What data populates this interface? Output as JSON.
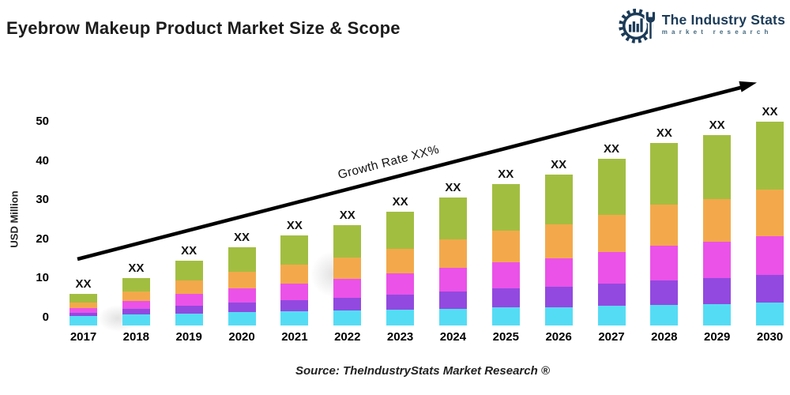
{
  "header": {
    "title": "Eyebrow Makeup Product Market Size & Scope",
    "logo": {
      "name": "The Industry Stats",
      "tagline": "market research",
      "color": "#1b3b58"
    }
  },
  "footer": {
    "source": "Source: TheIndustryStats Market Research ®"
  },
  "chart_data": {
    "type": "bar",
    "stacked": true,
    "title": "Eyebrow Makeup Product Market Size & Scope",
    "ylabel": "USD Million",
    "xlabel": "",
    "ylim": [
      0,
      50
    ],
    "yticks": [
      0,
      10,
      20,
      30,
      40,
      50
    ],
    "grid": false,
    "legend": "none",
    "value_label": "XX",
    "annotation": {
      "type": "trend-arrow",
      "text": "Growth Rate XX%"
    },
    "categories": [
      "2017",
      "2018",
      "2019",
      "2020",
      "2021",
      "2022",
      "2023",
      "2024",
      "2025",
      "2026",
      "2027",
      "2028",
      "2029",
      "2030"
    ],
    "totals_estimated": [
      6,
      10,
      14.5,
      18,
      21,
      23.5,
      27,
      30.5,
      34,
      36.5,
      40.5,
      44.5,
      46.5,
      50
    ],
    "series": [
      {
        "name": "layer-1-bottom",
        "color": "#55DCF5",
        "values": [
          0.5,
          0.8,
          1.1,
          1.4,
          1.6,
          1.8,
          2.0,
          2.3,
          2.6,
          2.7,
          3.0,
          3.3,
          3.5,
          3.8
        ]
      },
      {
        "name": "layer-2",
        "color": "#9249E0",
        "values": [
          0.8,
          1.4,
          2.0,
          2.5,
          2.9,
          3.3,
          3.8,
          4.3,
          4.8,
          5.1,
          5.7,
          6.2,
          6.5,
          7.0
        ]
      },
      {
        "name": "layer-3",
        "color": "#EB52E8",
        "values": [
          1.2,
          2.0,
          2.9,
          3.6,
          4.2,
          4.7,
          5.4,
          6.1,
          6.8,
          7.3,
          8.1,
          8.9,
          9.3,
          10.0
        ]
      },
      {
        "name": "layer-4",
        "color": "#F3A94B",
        "values": [
          1.4,
          2.4,
          3.4,
          4.2,
          4.9,
          5.5,
          6.3,
          7.2,
          8.0,
          8.6,
          9.5,
          10.5,
          10.9,
          11.8
        ]
      },
      {
        "name": "layer-5-top",
        "color": "#A2BE41",
        "values": [
          2.1,
          3.5,
          5.1,
          6.3,
          7.4,
          8.2,
          9.5,
          10.7,
          11.9,
          12.8,
          14.2,
          15.6,
          16.3,
          17.5
        ]
      }
    ]
  }
}
